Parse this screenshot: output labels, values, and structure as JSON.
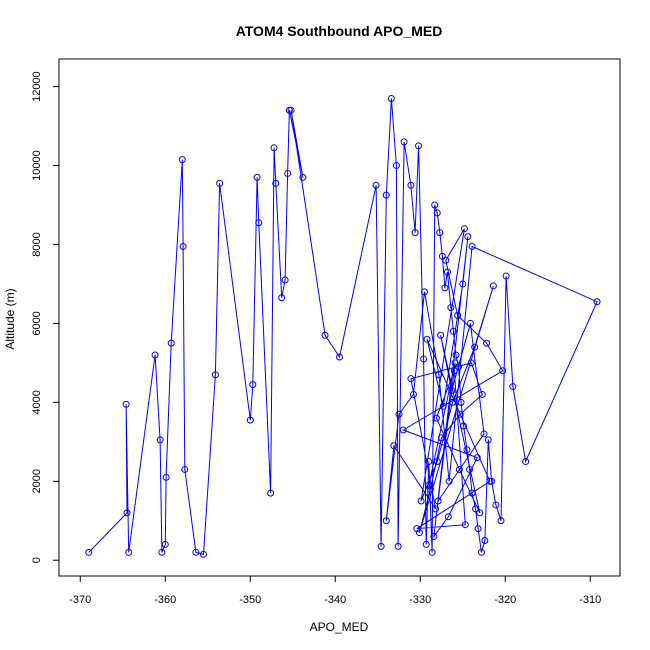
{
  "chart_data": {
    "type": "line",
    "title": "ATOM4 Southbound APO_MED",
    "xlabel": "APO_MED",
    "ylabel": "Altitude (m)",
    "xlim": [
      -372.5,
      -306.5
    ],
    "ylim": [
      -400,
      12700
    ],
    "x_ticks": [
      -370,
      -360,
      -350,
      -340,
      -330,
      -320,
      -310
    ],
    "y_ticks": [
      0,
      2000,
      4000,
      6000,
      8000,
      10000,
      12000
    ],
    "grid": false,
    "legend": "none",
    "line_color": "#0000ff",
    "marker": "open-circle",
    "series": [
      {
        "x": [
          -369.0,
          -364.5,
          -364.6,
          -364.3,
          -361.2,
          -360.6,
          -360.4,
          -360.0,
          -359.9,
          -359.3,
          -358.0,
          -357.9,
          -357.7,
          -356.4,
          -355.5,
          -354.1,
          -353.6,
          -350.0,
          -349.7,
          -349.2,
          -349.0,
          -347.6,
          -347.2,
          -347.0,
          -346.3,
          -345.9,
          -345.6,
          -345.4,
          -343.8,
          -345.2,
          -341.2,
          -339.5,
          -335.2,
          -334.6,
          -334.0,
          -333.4,
          -332.8,
          -332.6,
          -331.9,
          -331.1,
          -330.6,
          -330.2,
          -329.6,
          -329.3,
          -329.0,
          -328.6,
          -328.3,
          -328.0,
          -327.7,
          -327.4,
          -327.1,
          -326.8,
          -326.4,
          -326.1,
          -325.8,
          -325.5,
          -325.2,
          -324.9,
          -324.5,
          -324.2,
          -323.9,
          -323.5,
          -323.2,
          -322.8,
          -322.4,
          -322.0,
          -321.6,
          -321.1,
          -320.5,
          -319.9,
          -319.1,
          -317.6,
          -309.2,
          -323.9,
          -326.6,
          -327.8,
          -329.5,
          -330.8,
          -332.5,
          -334.0,
          -333.1,
          -328.2,
          -331.1,
          -324.0,
          -322.7,
          -325.3,
          -327.5,
          -328.8,
          -330.1,
          -321.4,
          -323.6,
          -326.2,
          -328.0,
          -329.9,
          -324.8,
          -327.0,
          -325.6,
          -322.2,
          -320.3,
          -332.0,
          -323.3,
          -326.7,
          -328.4,
          -324.4,
          -325.0,
          -327.3,
          -329.2,
          -321.8,
          -330.4,
          -324.7,
          -326.0,
          -328.1,
          -325.4,
          -323.0,
          -327.6,
          -326.3,
          -324.1,
          -322.5,
          -327.9,
          -325.9,
          -329.0
        ],
        "y": [
          200,
          1200,
          3950,
          200,
          5200,
          3050,
          200,
          400,
          2100,
          5500,
          10150,
          7950,
          2300,
          200,
          150,
          4700,
          9550,
          3550,
          4450,
          9700,
          8550,
          1700,
          10450,
          9550,
          6650,
          7100,
          9800,
          11400,
          9700,
          11400,
          5700,
          5150,
          9500,
          350,
          9250,
          11700,
          10000,
          350,
          10600,
          9500,
          8300,
          10500,
          5100,
          400,
          2500,
          200,
          9000,
          8800,
          8300,
          7700,
          6900,
          7300,
          6400,
          5800,
          5200,
          4900,
          4000,
          3400,
          2800,
          2300,
          1700,
          1300,
          800,
          200,
          500,
          3050,
          2000,
          1400,
          1000,
          7200,
          4400,
          2500,
          6550,
          7950,
          2000,
          4700,
          6800,
          4200,
          3700,
          1000,
          2900,
          1300,
          4600,
          5000,
          4200,
          3700,
          3100,
          1800,
          700,
          6950,
          5400,
          4000,
          2500,
          1500,
          8400,
          7600,
          6200,
          5500,
          4800,
          3300,
          2600,
          1100,
          600,
          8200,
          7000,
          3900,
          5600,
          2000,
          800,
          900,
          4800,
          3600,
          2300,
          1200,
          5700,
          4300,
          6000,
          3200,
          1500,
          5000,
          1900
        ]
      }
    ]
  }
}
